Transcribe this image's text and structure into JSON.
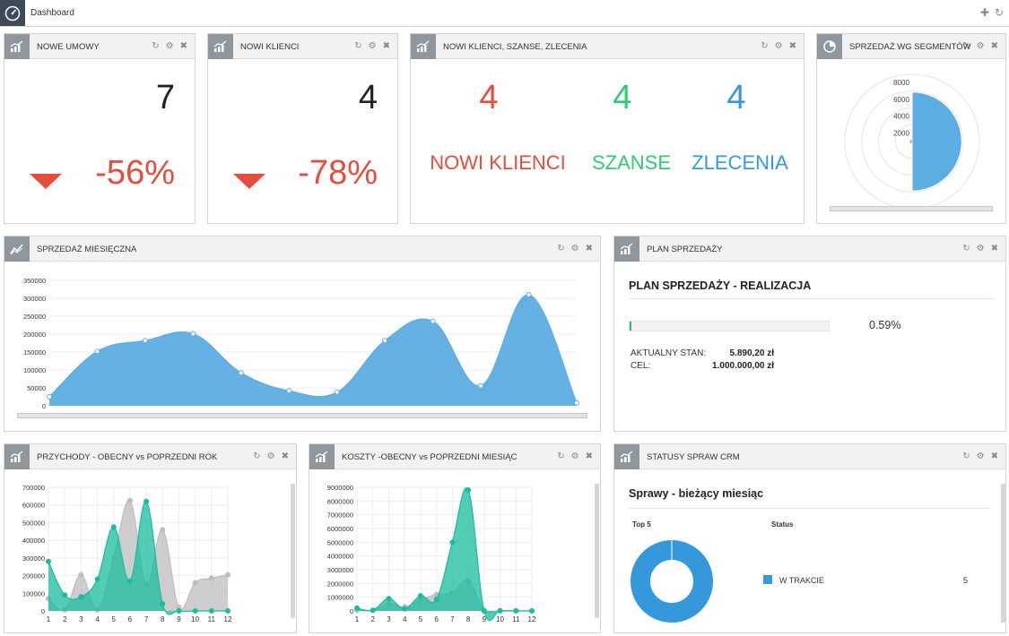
{
  "topbar": {
    "title": "Dashboard",
    "add_icon": "plus-icon",
    "refresh_icon": "refresh-icon"
  },
  "panel_icons": {
    "refresh": "↻",
    "settings": "⚙",
    "close": "✖"
  },
  "panels": {
    "nowe_umowy": {
      "title": "NOWE UMOWY",
      "value": "7",
      "change": "-56%"
    },
    "nowi_klienci": {
      "title": "NOWI KLIENCI",
      "value": "4",
      "change": "-78%"
    },
    "kpi": {
      "title": "NOWI KLIENCI, SZANSE, ZLECENIA",
      "items": [
        {
          "value": "4",
          "label": "NOWI KLIENCI",
          "color": "#e74c3c"
        },
        {
          "value": "4",
          "label": "SZANSE",
          "color": "#2ecc71"
        },
        {
          "value": "4",
          "label": "ZLECENIA",
          "color": "#3498db"
        }
      ]
    },
    "segmenty": {
      "title": "SPRZEDAŻ WG SEGMENTÓW"
    },
    "miesieczna": {
      "title": "SPRZEDAŻ MIESIĘCZNA"
    },
    "plan": {
      "title": "PLAN SPRZEDAŻY",
      "heading": "PLAN SPRZEDAŻY - REALIZACJA",
      "progress_pct": "0.59%",
      "progress_value": 0.59,
      "current_label": "AKTUALNY STAN:",
      "current_value": "5.890,20 zł",
      "goal_label": "CEL:",
      "goal_value": "1.000.000,00 zł"
    },
    "przychody": {
      "title": "PRZYCHODY - OBECNY vs POPRZEDNI ROK"
    },
    "koszty": {
      "title": "KOSZTY -OBECNY vs POPRZEDNI MIESIĄC"
    },
    "crm": {
      "title": "STATUSY SPRAW CRM",
      "heading": "Sprawy - bieżący miesiąc",
      "col_top": "Top 5",
      "col_status": "Status",
      "legend_label": "W TRAKCIE",
      "legend_value": "5"
    }
  },
  "chart_data": [
    {
      "type": "pie",
      "name": "segmenty",
      "rlabels": [
        "8000",
        "6000",
        "4000",
        "2000"
      ],
      "rmax": 8000,
      "slices": [
        {
          "value": 5890,
          "color": "#5dade2",
          "angle_share": 0.5
        },
        {
          "value": 300,
          "color": "#ec7063",
          "angle_share": 0.5
        }
      ]
    },
    {
      "type": "area",
      "name": "miesieczna",
      "ylim": [
        0,
        350000
      ],
      "yticks": [
        0,
        50000,
        100000,
        150000,
        200000,
        250000,
        300000,
        350000
      ],
      "values": [
        25000,
        152000,
        182000,
        201000,
        92000,
        42000,
        38000,
        182000,
        236000,
        56000,
        310000,
        8000
      ],
      "color": "#5dade2"
    },
    {
      "type": "area",
      "name": "przychody",
      "ylim": [
        0,
        700000
      ],
      "yticks": [
        0,
        100000,
        200000,
        300000,
        400000,
        500000,
        600000,
        700000
      ],
      "categories": [
        "1",
        "2",
        "3",
        "4",
        "5",
        "6",
        "7",
        "8",
        "9",
        "10",
        "11",
        "12"
      ],
      "series": [
        {
          "color": "#bdbdbd",
          "values": [
            70000,
            5000,
            205000,
            5000,
            300000,
            625000,
            150000,
            460000,
            20000,
            160000,
            185000,
            205000
          ]
        },
        {
          "color": "#1abc9c",
          "values": [
            280000,
            90000,
            80000,
            180000,
            475000,
            170000,
            620000,
            40000,
            0,
            0,
            0,
            0
          ]
        }
      ]
    },
    {
      "type": "area",
      "name": "koszty",
      "ylim": [
        0,
        9000000
      ],
      "yticks": [
        0,
        1000000,
        2000000,
        3000000,
        4000000,
        5000000,
        6000000,
        7000000,
        8000000,
        9000000
      ],
      "categories": [
        "1",
        "2",
        "3",
        "4",
        "5",
        "6",
        "7",
        "8",
        "9",
        "10",
        "11",
        "12"
      ],
      "series": [
        {
          "color": "#bdbdbd",
          "values": [
            50000,
            30000,
            500000,
            300000,
            800000,
            1200000,
            1300000,
            2200000,
            50000,
            30000,
            20000,
            10000
          ]
        },
        {
          "color": "#1abc9c",
          "values": [
            200000,
            50000,
            900000,
            150000,
            1100000,
            850000,
            5000000,
            8800000,
            0,
            0,
            0,
            0
          ]
        }
      ]
    },
    {
      "type": "pie",
      "name": "crm",
      "slices": [
        {
          "label": "W TRAKCIE",
          "value": 5,
          "color": "#3498db"
        }
      ]
    }
  ]
}
